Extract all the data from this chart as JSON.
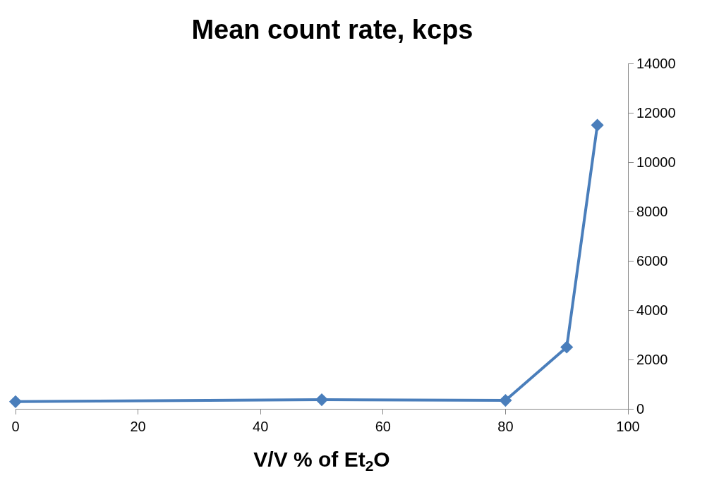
{
  "chart_data": {
    "type": "line",
    "title": "Mean count rate, kcps",
    "xlabel": "V/V % of Et$_{2}$O",
    "x": [
      0,
      50,
      80,
      90,
      95
    ],
    "series": [
      {
        "color": "#4a7ebb",
        "values": [
          290,
          370,
          340,
          2500,
          11500
        ]
      }
    ],
    "xlim": [
      0,
      100
    ],
    "xticks": [
      0,
      20,
      40,
      60,
      80,
      100
    ],
    "ylim": [
      0,
      14000
    ],
    "yticks": [
      0,
      2000,
      4000,
      6000,
      8000,
      10000,
      12000,
      14000
    ],
    "legend": false,
    "marker": "diamond",
    "line_style": "solid"
  }
}
